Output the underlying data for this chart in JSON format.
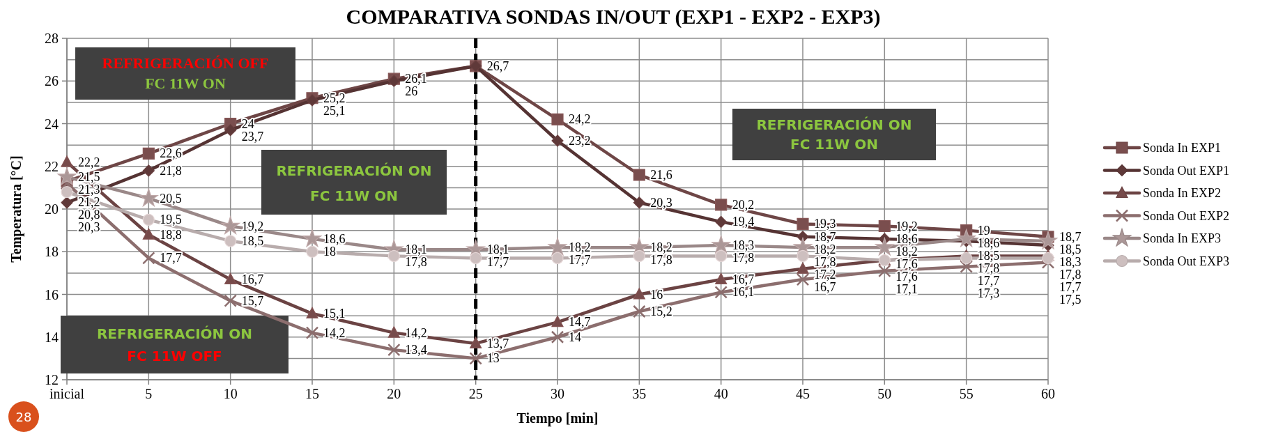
{
  "chart_data": {
    "type": "line",
    "title": "COMPARATIVA SONDAS IN/OUT (EXP1 - EXP2 - EXP3)",
    "xlabel": "Tiempo [min]",
    "ylabel": "Temperatura [°C]",
    "categories": [
      "inicial",
      "5",
      "10",
      "15",
      "20",
      "25",
      "30",
      "35",
      "40",
      "45",
      "50",
      "55",
      "60"
    ],
    "series": [
      {
        "name": "Sonda In EXP1",
        "color": "#6e4646",
        "marker": "square",
        "values": [
          21.3,
          22.6,
          24,
          25.2,
          26.1,
          26.7,
          24.2,
          21.6,
          20.2,
          19.3,
          19.2,
          19,
          18.7
        ],
        "value_labels": [
          "21,3",
          "22,6",
          "24",
          "25,2",
          "26,1",
          "26,7",
          "24,2",
          "21,6",
          "20,2",
          "19,3",
          "19,2",
          "19",
          "18,7"
        ]
      },
      {
        "name": "Sonda Out EXP1",
        "color": "#553333",
        "marker": "diamond",
        "values": [
          20.3,
          21.8,
          23.7,
          25.1,
          26,
          26.7,
          23.2,
          20.3,
          19.4,
          18.7,
          18.6,
          18.5,
          18.3
        ],
        "value_labels": [
          "20,3",
          "21,8",
          "23,7",
          "25,1",
          "26",
          null,
          "23,2",
          "20,3",
          "19,4",
          "18,7",
          "18,6",
          "18,5",
          "18,3"
        ]
      },
      {
        "name": "Sonda In EXP2",
        "color": "#6b4343",
        "marker": "triangle",
        "values": [
          22.2,
          18.8,
          16.7,
          15.1,
          14.2,
          13.7,
          14.7,
          16,
          16.7,
          17.2,
          17.6,
          17.8,
          17.8
        ],
        "value_labels": [
          "22,2",
          "18,8",
          "16,7",
          "15,1",
          "14,2",
          "13,7",
          "14,7",
          "16",
          "16,7",
          "17,2",
          "17,6",
          "17,8",
          "17,8"
        ]
      },
      {
        "name": "Sonda Out EXP2",
        "color": "#8c6e6e",
        "marker": "cross",
        "values": [
          21.2,
          17.7,
          15.7,
          14.2,
          13.4,
          13,
          14,
          15.2,
          16.1,
          16.7,
          17.1,
          17.3,
          17.5
        ],
        "value_labels": [
          "21,2",
          "17,7",
          "15,7",
          "14,2",
          "13,4",
          "13",
          "14",
          "15,2",
          "16,1",
          "16,7",
          "17,1",
          "17,3",
          "17,5"
        ]
      },
      {
        "name": "Sonda In EXP3",
        "color": "#9a8888",
        "marker": "star",
        "values": [
          21.5,
          20.5,
          19.2,
          18.6,
          18.1,
          18.1,
          18.2,
          18.2,
          18.3,
          18.2,
          18.2,
          18.6,
          18.5
        ],
        "value_labels": [
          "21,5",
          "20,5",
          "19,2",
          "18,6",
          "18,1",
          "18,1",
          "18,2",
          "18,2",
          "18,3",
          "18,2",
          "18,2",
          "18,6",
          "18,5"
        ]
      },
      {
        "name": "Sonda Out EXP3",
        "color": "#b8acac",
        "marker": "circle",
        "values": [
          20.8,
          19.5,
          18.5,
          18,
          17.8,
          17.7,
          17.7,
          17.8,
          17.8,
          17.8,
          17.6,
          17.7,
          17.7
        ],
        "value_labels": [
          "20,8",
          "19,5",
          "18,5",
          "18",
          "17,8",
          "17,7",
          "17,7",
          "17,8",
          "17,8",
          "17,8",
          "17,6",
          "17,7",
          "17,7"
        ]
      }
    ],
    "ylim": [
      12,
      28
    ],
    "yticks": [
      12,
      {
        "value": 13,
        "label": null
      },
      14,
      {
        "value": 15,
        "label": null
      },
      16,
      {
        "value": 17,
        "label": null
      },
      18,
      {
        "value": 19,
        "label": null
      },
      20,
      {
        "value": 21,
        "label": null
      },
      22,
      {
        "value": 23,
        "label": null
      },
      24,
      {
        "value": 25,
        "label": null
      },
      26,
      {
        "value": 27,
        "label": null
      },
      28
    ],
    "grid": true,
    "legend": "right",
    "line_style": "solid",
    "ref_lines": [
      {
        "axis": "x",
        "value": "25",
        "color": "#000000",
        "line_style": "dashed"
      }
    ],
    "annotations": [
      "REFRIGERACIÓN OFF",
      "FC 11W ON",
      "REFRIGERACIÓN ON",
      "FC 11W ON",
      "REFRIGERACIÓN ON",
      "FC 11W ON",
      "REFRIGERACIÓN ON",
      "FC 11W OFF",
      "28"
    ]
  }
}
